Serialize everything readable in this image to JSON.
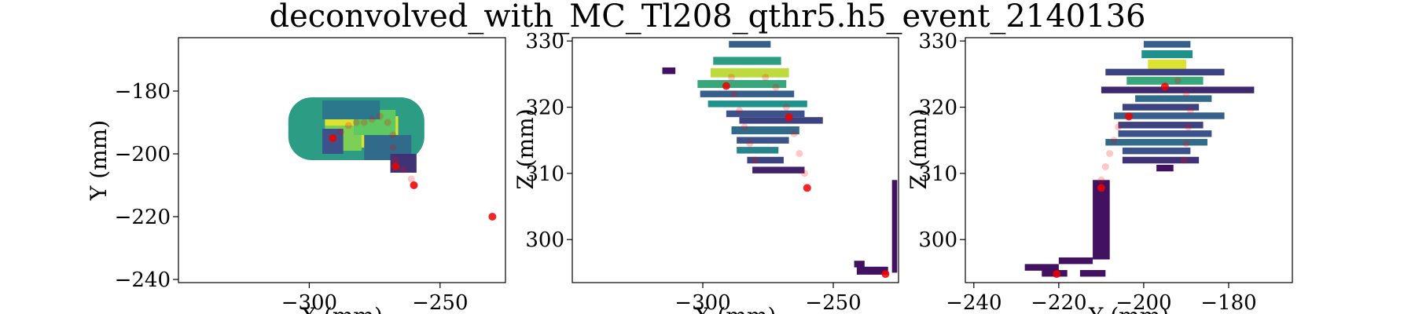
{
  "figure": {
    "title": "deconvolved_with_MC_Tl208_qthr5.h5_event_2140136"
  },
  "chart_data": [
    {
      "type": "heatmap",
      "xlabel": "X (mm)",
      "ylabel": "Y (mm)",
      "xlim": [
        -350,
        -225
      ],
      "ylim": [
        -241,
        -163
      ],
      "xticks": [
        -300,
        -250
      ],
      "yticks": [
        -240,
        -220,
        -200,
        -180
      ],
      "colormap": "viridis",
      "hits": [
        {
          "x": -282,
          "y": -192,
          "w": 52,
          "h": 20,
          "intensity": 0.55
        },
        {
          "x": -280,
          "y": -193,
          "w": 28,
          "h": 10,
          "intensity": 0.95
        },
        {
          "x": -287,
          "y": -195,
          "w": 14,
          "h": 8,
          "intensity": 0.8
        },
        {
          "x": -275,
          "y": -190,
          "w": 16,
          "h": 8,
          "intensity": 0.75
        },
        {
          "x": -284,
          "y": -186,
          "w": 22,
          "h": 6,
          "intensity": 0.4
        },
        {
          "x": -270,
          "y": -198,
          "w": 18,
          "h": 8,
          "intensity": 0.35
        },
        {
          "x": -264,
          "y": -203,
          "w": 10,
          "h": 6,
          "intensity": 0.15
        },
        {
          "x": -291,
          "y": -196,
          "w": 8,
          "h": 8,
          "intensity": 0.25
        }
      ],
      "track_points": [
        {
          "x": -291,
          "y": -195
        },
        {
          "x": -288,
          "y": -193
        },
        {
          "x": -285,
          "y": -191
        },
        {
          "x": -282,
          "y": -190
        },
        {
          "x": -279,
          "y": -190
        },
        {
          "x": -276,
          "y": -189
        },
        {
          "x": -273,
          "y": -188
        },
        {
          "x": -270,
          "y": -190
        },
        {
          "x": -268,
          "y": -194
        },
        {
          "x": -268,
          "y": -198
        },
        {
          "x": -267,
          "y": -202
        },
        {
          "x": -264,
          "y": -205
        },
        {
          "x": -261,
          "y": -208
        },
        {
          "x": -260,
          "y": -210
        }
      ],
      "key_points": [
        {
          "x": -291,
          "y": -195
        },
        {
          "x": -267,
          "y": -204
        },
        {
          "x": -260,
          "y": -210
        },
        {
          "x": -230,
          "y": -220
        }
      ]
    },
    {
      "type": "heatmap",
      "xlabel": "X (mm)",
      "ylabel": "Z (mm)",
      "xlim": [
        -350,
        -225
      ],
      "ylim": [
        293.5,
        330.5
      ],
      "xticks": [
        -300,
        -250
      ],
      "yticks": [
        300,
        310,
        320,
        330
      ],
      "colormap": "viridis",
      "hits": [
        {
          "x": -282,
          "y": 329.5,
          "w": 16,
          "h": 1,
          "intensity": 0.3
        },
        {
          "x": -283,
          "y": 327,
          "w": 26,
          "h": 1.2,
          "intensity": 0.55
        },
        {
          "x": -282,
          "y": 325.2,
          "w": 30,
          "h": 1.4,
          "intensity": 0.9
        },
        {
          "x": -285,
          "y": 323.5,
          "w": 34,
          "h": 1.2,
          "intensity": 0.6
        },
        {
          "x": -283,
          "y": 322,
          "w": 36,
          "h": 1,
          "intensity": 0.3
        },
        {
          "x": -279,
          "y": 320.5,
          "w": 38,
          "h": 1,
          "intensity": 0.5
        },
        {
          "x": -276,
          "y": 319,
          "w": 30,
          "h": 1,
          "intensity": 0.25
        },
        {
          "x": -270,
          "y": 318,
          "w": 32,
          "h": 1,
          "intensity": 0.2
        },
        {
          "x": -276,
          "y": 316.5,
          "w": 26,
          "h": 1.2,
          "intensity": 0.35
        },
        {
          "x": -277,
          "y": 315,
          "w": 20,
          "h": 1,
          "intensity": 0.25
        },
        {
          "x": -279,
          "y": 313.5,
          "w": 16,
          "h": 1,
          "intensity": 0.45
        },
        {
          "x": -276,
          "y": 312,
          "w": 14,
          "h": 1,
          "intensity": 0.2
        },
        {
          "x": -271,
          "y": 310.5,
          "w": 20,
          "h": 1,
          "intensity": 0.1
        },
        {
          "x": -313,
          "y": 325.5,
          "w": 5,
          "h": 1,
          "intensity": 0.05
        },
        {
          "x": -226.5,
          "y": 302,
          "w": 2,
          "h": 14,
          "intensity": 0.05
        },
        {
          "x": -235,
          "y": 295.3,
          "w": 12,
          "h": 1.2,
          "intensity": 0.05
        },
        {
          "x": -240,
          "y": 296.3,
          "w": 4,
          "h": 1,
          "intensity": 0.05
        }
      ],
      "track_points": [
        {
          "x": -289,
          "y": 324.5
        },
        {
          "x": -288,
          "y": 322
        },
        {
          "x": -286,
          "y": 319.5
        },
        {
          "x": -284,
          "y": 317
        },
        {
          "x": -282,
          "y": 314.5
        },
        {
          "x": -280,
          "y": 312
        },
        {
          "x": -276,
          "y": 324.5
        },
        {
          "x": -272,
          "y": 323
        },
        {
          "x": -268,
          "y": 320
        },
        {
          "x": -265,
          "y": 316
        },
        {
          "x": -263,
          "y": 313
        },
        {
          "x": -261,
          "y": 310
        }
      ],
      "key_points": [
        {
          "x": -291,
          "y": 323.2
        },
        {
          "x": -267,
          "y": 318.5
        },
        {
          "x": -260,
          "y": 307.8
        },
        {
          "x": -230,
          "y": 294.8
        }
      ]
    },
    {
      "type": "heatmap",
      "xlabel": "Y (mm)",
      "ylabel": "Z (mm)",
      "xlim": [
        -242,
        -165
      ],
      "ylim": [
        293.5,
        330.5
      ],
      "xticks": [
        -240,
        -220,
        -200,
        -180
      ],
      "yticks": [
        300,
        310,
        320,
        330
      ],
      "colormap": "viridis",
      "hits": [
        {
          "x": -194.5,
          "y": 329.5,
          "w": 11,
          "h": 1,
          "intensity": 0.3
        },
        {
          "x": -194.5,
          "y": 328,
          "w": 12,
          "h": 1.2,
          "intensity": 0.5
        },
        {
          "x": -194.5,
          "y": 326.5,
          "w": 9,
          "h": 1.4,
          "intensity": 0.95
        },
        {
          "x": -195,
          "y": 325.3,
          "w": 28,
          "h": 1,
          "intensity": 0.2
        },
        {
          "x": -195,
          "y": 324,
          "w": 18,
          "h": 1.2,
          "intensity": 0.6
        },
        {
          "x": -192,
          "y": 322.6,
          "w": 36,
          "h": 1,
          "intensity": 0.12
        },
        {
          "x": -193,
          "y": 321.3,
          "w": 18,
          "h": 1,
          "intensity": 0.35
        },
        {
          "x": -196,
          "y": 320,
          "w": 18,
          "h": 1,
          "intensity": 0.2
        },
        {
          "x": -194,
          "y": 318.7,
          "w": 26,
          "h": 1,
          "intensity": 0.3
        },
        {
          "x": -196,
          "y": 317.3,
          "w": 20,
          "h": 1,
          "intensity": 0.2
        },
        {
          "x": -195,
          "y": 316,
          "w": 22,
          "h": 1,
          "intensity": 0.25
        },
        {
          "x": -197,
          "y": 314.7,
          "w": 24,
          "h": 1,
          "intensity": 0.35
        },
        {
          "x": -197,
          "y": 313.4,
          "w": 16,
          "h": 1,
          "intensity": 0.25
        },
        {
          "x": -196,
          "y": 312,
          "w": 18,
          "h": 1,
          "intensity": 0.15
        },
        {
          "x": -195,
          "y": 310.8,
          "w": 4,
          "h": 1,
          "intensity": 0.05
        },
        {
          "x": -210,
          "y": 303,
          "w": 4,
          "h": 12,
          "intensity": 0.05
        },
        {
          "x": -216,
          "y": 296.8,
          "w": 8,
          "h": 1,
          "intensity": 0.05
        },
        {
          "x": -224,
          "y": 295.8,
          "w": 8,
          "h": 1,
          "intensity": 0.05
        },
        {
          "x": -221,
          "y": 294.9,
          "w": 6,
          "h": 1,
          "intensity": 0.05
        },
        {
          "x": -212,
          "y": 294.9,
          "w": 6,
          "h": 1,
          "intensity": 0.05
        }
      ],
      "track_points": [
        {
          "x": -206,
          "y": 317
        },
        {
          "x": -207,
          "y": 315
        },
        {
          "x": -208,
          "y": 313
        },
        {
          "x": -209,
          "y": 311
        },
        {
          "x": -210,
          "y": 309
        },
        {
          "x": -192,
          "y": 324
        },
        {
          "x": -190,
          "y": 322
        },
        {
          "x": -189,
          "y": 319.5
        },
        {
          "x": -189.5,
          "y": 317
        },
        {
          "x": -190,
          "y": 314.5
        },
        {
          "x": -190.5,
          "y": 312
        }
      ],
      "key_points": [
        {
          "x": -195,
          "y": 323.1
        },
        {
          "x": -203.5,
          "y": 318.6
        },
        {
          "x": -210,
          "y": 307.8
        },
        {
          "x": -220.5,
          "y": 294.8
        }
      ]
    }
  ]
}
